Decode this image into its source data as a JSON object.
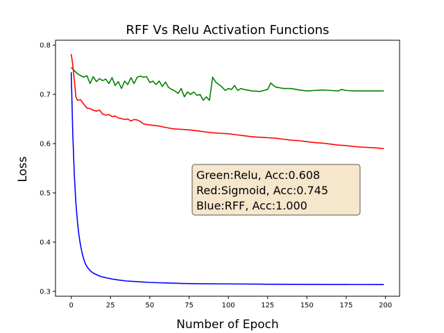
{
  "chart_data": {
    "type": "line",
    "title": "RFF Vs Relu Activation Functions",
    "xlabel": "Number of Epoch",
    "ylabel": "Loss",
    "xlim": [
      -10,
      209
    ],
    "ylim": [
      0.29,
      0.81
    ],
    "x_ticks": [
      0,
      25,
      50,
      75,
      100,
      125,
      150,
      175,
      200
    ],
    "y_ticks": [
      0.3,
      0.4,
      0.5,
      0.6,
      0.7,
      0.8
    ],
    "x_tick_labels": [
      "0",
      "25",
      "50",
      "75",
      "100",
      "125",
      "150",
      "175",
      "200"
    ],
    "y_tick_labels": [
      "0.3",
      "0.4",
      "0.5",
      "0.6",
      "0.7",
      "0.8"
    ],
    "grid": false,
    "annotation": {
      "lines": [
        "Green:Relu, Acc:0.608",
        "Red:Sigmoid, Acc:0.745",
        "Blue:RFF, Acc:1.000"
      ],
      "background": "#f5e6cc",
      "border": "#555555"
    },
    "series": [
      {
        "color": "#008000",
        "x": [
          0,
          2,
          4,
          6,
          8,
          10,
          12,
          14,
          16,
          18,
          20,
          22,
          24,
          26,
          28,
          30,
          32,
          34,
          36,
          38,
          40,
          42,
          44,
          46,
          48,
          50,
          52,
          54,
          56,
          58,
          60,
          62,
          64,
          66,
          68,
          70,
          72,
          74,
          76,
          78,
          80,
          82,
          84,
          86,
          88,
          90,
          92,
          94,
          96,
          98,
          100,
          102,
          104,
          106,
          108,
          110,
          115,
          120,
          125,
          127,
          130,
          135,
          140,
          145,
          150,
          155,
          160,
          165,
          170,
          172,
          175,
          180,
          190,
          199
        ],
        "values": [
          0.755,
          0.748,
          0.742,
          0.738,
          0.735,
          0.738,
          0.722,
          0.736,
          0.726,
          0.732,
          0.728,
          0.731,
          0.722,
          0.734,
          0.718,
          0.726,
          0.712,
          0.727,
          0.72,
          0.734,
          0.722,
          0.735,
          0.737,
          0.735,
          0.736,
          0.724,
          0.727,
          0.72,
          0.727,
          0.716,
          0.725,
          0.714,
          0.71,
          0.707,
          0.702,
          0.712,
          0.695,
          0.705,
          0.7,
          0.705,
          0.698,
          0.7,
          0.688,
          0.695,
          0.688,
          0.735,
          0.725,
          0.72,
          0.715,
          0.708,
          0.712,
          0.71,
          0.718,
          0.708,
          0.712,
          0.71,
          0.707,
          0.706,
          0.71,
          0.723,
          0.715,
          0.712,
          0.712,
          0.709,
          0.707,
          0.708,
          0.709,
          0.708,
          0.707,
          0.71,
          0.708,
          0.707,
          0.707,
          0.707
        ]
      },
      {
        "color": "#ff0000",
        "x": [
          0,
          1,
          2,
          3,
          4,
          6,
          8,
          10,
          12,
          14,
          16,
          18,
          20,
          22,
          24,
          26,
          28,
          30,
          32,
          34,
          36,
          38,
          40,
          42,
          44,
          46,
          48,
          50,
          55,
          60,
          65,
          70,
          75,
          80,
          85,
          90,
          95,
          100,
          105,
          110,
          115,
          120,
          125,
          130,
          135,
          140,
          145,
          150,
          155,
          160,
          165,
          170,
          175,
          180,
          185,
          190,
          195,
          199
        ],
        "values": [
          0.782,
          0.76,
          0.728,
          0.695,
          0.688,
          0.689,
          0.68,
          0.672,
          0.671,
          0.668,
          0.666,
          0.668,
          0.66,
          0.658,
          0.659,
          0.655,
          0.656,
          0.652,
          0.651,
          0.649,
          0.65,
          0.646,
          0.649,
          0.648,
          0.645,
          0.64,
          0.639,
          0.638,
          0.636,
          0.633,
          0.63,
          0.629,
          0.628,
          0.626,
          0.624,
          0.622,
          0.621,
          0.62,
          0.618,
          0.616,
          0.614,
          0.613,
          0.612,
          0.611,
          0.609,
          0.607,
          0.606,
          0.604,
          0.602,
          0.601,
          0.599,
          0.597,
          0.596,
          0.594,
          0.593,
          0.592,
          0.591,
          0.59
        ]
      },
      {
        "color": "#0000ff",
        "x": [
          0,
          1,
          2,
          3,
          4,
          5,
          6,
          7,
          8,
          9,
          10,
          12,
          14,
          16,
          18,
          20,
          23,
          26,
          30,
          35,
          40,
          45,
          50,
          60,
          70,
          80,
          100,
          120,
          150,
          175,
          199
        ],
        "values": [
          0.745,
          0.62,
          0.535,
          0.478,
          0.44,
          0.412,
          0.392,
          0.377,
          0.365,
          0.356,
          0.35,
          0.342,
          0.337,
          0.334,
          0.331,
          0.329,
          0.327,
          0.325,
          0.323,
          0.321,
          0.32,
          0.319,
          0.318,
          0.317,
          0.316,
          0.3155,
          0.315,
          0.3145,
          0.314,
          0.3138,
          0.3137
        ]
      }
    ]
  }
}
